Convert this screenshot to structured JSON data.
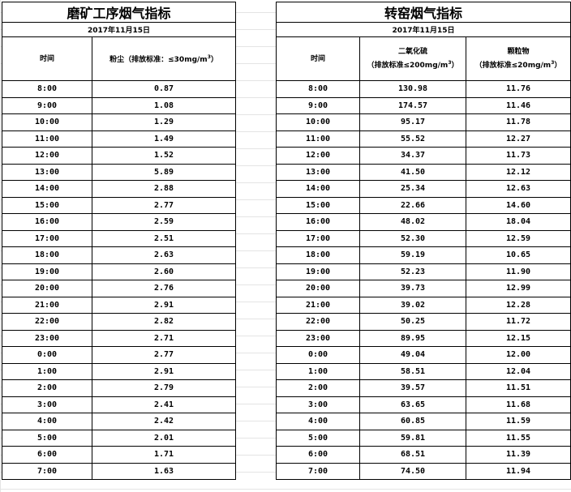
{
  "left_table": {
    "title": "磨矿工序烟气指标",
    "date": "2017年11月15日",
    "headers": {
      "time": "时间",
      "dust_pre": "粉尘（排放标准：≤30mg/m",
      "dust_sup": "3",
      "dust_post": "）"
    },
    "rows": [
      [
        "8:00",
        "0.87"
      ],
      [
        "9:00",
        "1.08"
      ],
      [
        "10:00",
        "1.29"
      ],
      [
        "11:00",
        "1.49"
      ],
      [
        "12:00",
        "1.52"
      ],
      [
        "13:00",
        "5.89"
      ],
      [
        "14:00",
        "2.88"
      ],
      [
        "15:00",
        "2.77"
      ],
      [
        "16:00",
        "2.59"
      ],
      [
        "17:00",
        "2.51"
      ],
      [
        "18:00",
        "2.63"
      ],
      [
        "19:00",
        "2.60"
      ],
      [
        "20:00",
        "2.76"
      ],
      [
        "21:00",
        "2.91"
      ],
      [
        "22:00",
        "2.82"
      ],
      [
        "23:00",
        "2.71"
      ],
      [
        "0:00",
        "2.77"
      ],
      [
        "1:00",
        "2.91"
      ],
      [
        "2:00",
        "2.79"
      ],
      [
        "3:00",
        "2.41"
      ],
      [
        "4:00",
        "2.42"
      ],
      [
        "5:00",
        "2.01"
      ],
      [
        "6:00",
        "1.71"
      ],
      [
        "7:00",
        "1.63"
      ]
    ]
  },
  "right_table": {
    "title": "转窑烟气指标",
    "date": "2017年11月15日",
    "headers": {
      "time": "时间",
      "so2_name": "二氧化硫",
      "so2_pre": "（排放标准≤200mg/m",
      "so2_sup": "3",
      "so2_post": "）",
      "pm_name": "颗粒物",
      "pm_pre": "（排放标准≤20mg/m",
      "pm_sup": "3",
      "pm_post": "）"
    },
    "rows": [
      [
        "8:00",
        "130.98",
        "11.76"
      ],
      [
        "9:00",
        "174.57",
        "11.46"
      ],
      [
        "10:00",
        "95.17",
        "11.78"
      ],
      [
        "11:00",
        "55.52",
        "12.27"
      ],
      [
        "12:00",
        "34.37",
        "11.73"
      ],
      [
        "13:00",
        "41.50",
        "12.12"
      ],
      [
        "14:00",
        "25.34",
        "12.63"
      ],
      [
        "15:00",
        "22.66",
        "14.60"
      ],
      [
        "16:00",
        "48.02",
        "18.04"
      ],
      [
        "17:00",
        "52.30",
        "12.59"
      ],
      [
        "18:00",
        "59.19",
        "10.65"
      ],
      [
        "19:00",
        "52.23",
        "11.90"
      ],
      [
        "20:00",
        "39.73",
        "12.99"
      ],
      [
        "21:00",
        "39.02",
        "12.28"
      ],
      [
        "22:00",
        "50.25",
        "11.72"
      ],
      [
        "23:00",
        "89.95",
        "12.15"
      ],
      [
        "0:00",
        "49.04",
        "12.00"
      ],
      [
        "1:00",
        "58.51",
        "12.04"
      ],
      [
        "2:00",
        "39.57",
        "11.51"
      ],
      [
        "3:00",
        "63.65",
        "11.68"
      ],
      [
        "4:00",
        "60.85",
        "11.59"
      ],
      [
        "5:00",
        "59.81",
        "11.55"
      ],
      [
        "6:00",
        "68.51",
        "11.39"
      ],
      [
        "7:00",
        "74.50",
        "11.94"
      ]
    ]
  }
}
